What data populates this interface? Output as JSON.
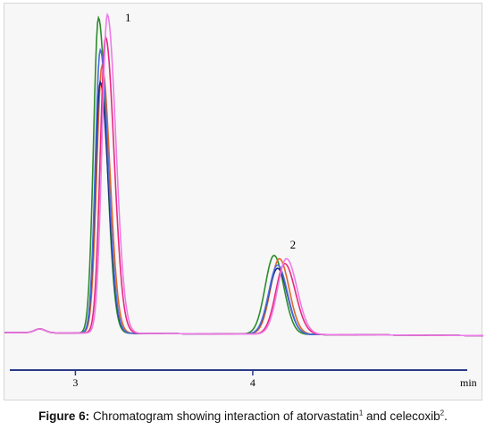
{
  "chart_data": {
    "type": "line",
    "title": "",
    "xlabel": "min",
    "ylabel": "",
    "x_ticks": [
      3,
      4
    ],
    "x_tick_labels": [
      "3",
      "4"
    ],
    "xlim": [
      2.6,
      5.3
    ],
    "ylim": [
      -0.02,
      1.0
    ],
    "grid": false,
    "legend": "none",
    "peak_labels": [
      {
        "text": "1",
        "x": 3.28
      },
      {
        "text": "2",
        "x": 4.21
      }
    ],
    "series": [
      {
        "color": "#2e8b2e",
        "baseline": 0.0,
        "peaks": [
          {
            "x": 3.13,
            "height": 0.98,
            "w_left": 0.028,
            "w_right": 0.045
          },
          {
            "x": 4.12,
            "height": 0.245,
            "w_left": 0.05,
            "w_right": 0.055
          }
        ]
      },
      {
        "color": "#e0672a",
        "baseline": 0.0,
        "peaks": [
          {
            "x": 3.15,
            "height": 0.83,
            "w_left": 0.03,
            "w_right": 0.045
          },
          {
            "x": 4.15,
            "height": 0.235,
            "w_left": 0.05,
            "w_right": 0.055
          }
        ]
      },
      {
        "color": "#1b2a7a",
        "baseline": 0.0,
        "peaks": [
          {
            "x": 3.14,
            "height": 0.78,
            "w_left": 0.028,
            "w_right": 0.045
          },
          {
            "x": 4.14,
            "height": 0.205,
            "w_left": 0.05,
            "w_right": 0.055
          }
        ]
      },
      {
        "color": "#4a6fe0",
        "baseline": 0.0,
        "peaks": [
          {
            "x": 3.14,
            "height": 0.88,
            "w_left": 0.028,
            "w_right": 0.045
          },
          {
            "x": 4.14,
            "height": 0.215,
            "w_left": 0.05,
            "w_right": 0.055
          }
        ]
      },
      {
        "color": "#e8297f",
        "baseline": 0.0,
        "peaks": [
          {
            "x": 3.17,
            "height": 0.92,
            "w_left": 0.03,
            "w_right": 0.048
          },
          {
            "x": 4.18,
            "height": 0.22,
            "w_left": 0.05,
            "w_right": 0.06
          }
        ]
      },
      {
        "color": "#ee7be8",
        "baseline": 0.0,
        "peaks": [
          {
            "x": 3.18,
            "height": 0.99,
            "w_left": 0.03,
            "w_right": 0.048
          },
          {
            "x": 4.19,
            "height": 0.235,
            "w_left": 0.05,
            "w_right": 0.06
          }
        ]
      }
    ],
    "baseline_hump": {
      "x": 2.8,
      "height": 0.012,
      "width": 0.03
    }
  },
  "caption": {
    "label": "Figure 6:",
    "text": "Chromatogram showing interaction of atorvastatin",
    "sup1": "1",
    "mid": " and celecoxib",
    "sup2": "2",
    "end": "."
  }
}
